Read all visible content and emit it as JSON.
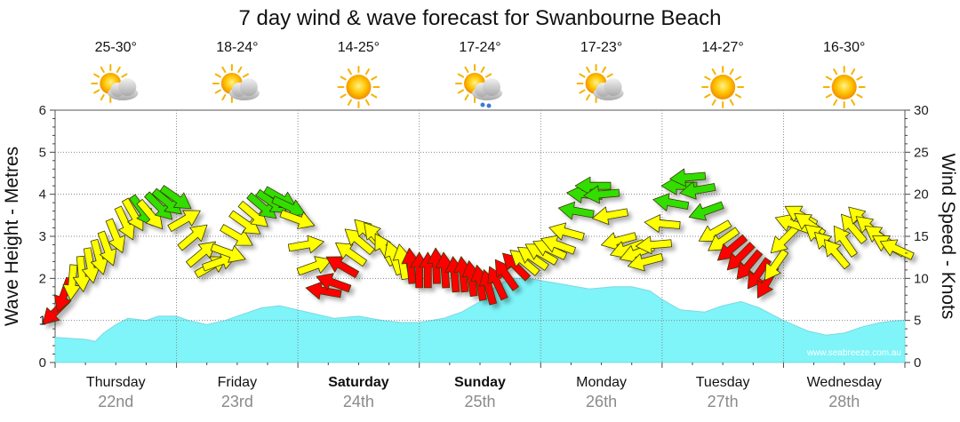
{
  "chart_data": {
    "type": "area",
    "title": "7 day wind & wave forecast for Swanbourne Beach",
    "y_left_label": "Wave Height - Metres",
    "y_right_label": "Wind Speed - Knots",
    "y_left_range": [
      0,
      6
    ],
    "y_right_range": [
      0,
      30
    ],
    "y_left_ticks": [
      "0",
      "1",
      "2",
      "3",
      "4",
      "5",
      "6"
    ],
    "y_right_ticks": [
      "0",
      "5",
      "10",
      "15",
      "20",
      "25",
      "30"
    ],
    "days": [
      {
        "name": "Thursday",
        "date": "22nd",
        "temp": "25-30°",
        "icon": "partly-cloudy-icon",
        "weekend": false
      },
      {
        "name": "Friday",
        "date": "23rd",
        "temp": "18-24°",
        "icon": "partly-cloudy-icon",
        "weekend": false
      },
      {
        "name": "Saturday",
        "date": "24th",
        "temp": "14-25°",
        "icon": "sunny-icon",
        "weekend": true
      },
      {
        "name": "Sunday",
        "date": "25th",
        "temp": "17-24°",
        "icon": "showers-icon",
        "weekend": true
      },
      {
        "name": "Monday",
        "date": "26th",
        "temp": "17-23°",
        "icon": "partly-cloudy-icon",
        "weekend": false
      },
      {
        "name": "Tuesday",
        "date": "27th",
        "temp": "14-27°",
        "icon": "sunny-icon",
        "weekend": false
      },
      {
        "name": "Wednesday",
        "date": "28th",
        "temp": "16-30°",
        "icon": "sunny-icon",
        "weekend": false
      }
    ],
    "wave_series": {
      "name": "Wave height",
      "color": "#7ff4f9",
      "t": [
        0,
        0.25,
        0.33,
        0.4,
        0.5,
        0.6,
        0.75,
        0.85,
        1.0,
        1.1,
        1.25,
        1.4,
        1.55,
        1.7,
        1.85,
        2.0,
        2.15,
        2.3,
        2.5,
        2.7,
        2.85,
        3.0,
        3.2,
        3.35,
        3.5,
        3.6,
        3.75,
        3.9,
        4.0,
        4.2,
        4.4,
        4.6,
        4.75,
        4.9,
        5.0,
        5.15,
        5.35,
        5.5,
        5.65,
        5.8,
        6.0,
        6.2,
        6.35,
        6.5,
        6.65,
        6.8,
        6.95,
        7.0
      ],
      "values": [
        0.6,
        0.55,
        0.5,
        0.7,
        0.9,
        1.05,
        1.0,
        1.1,
        1.1,
        1.0,
        0.9,
        1.0,
        1.15,
        1.3,
        1.35,
        1.25,
        1.15,
        1.05,
        1.1,
        1.0,
        0.95,
        0.95,
        1.05,
        1.2,
        1.45,
        1.75,
        2.0,
        2.0,
        1.95,
        1.85,
        1.75,
        1.8,
        1.8,
        1.7,
        1.5,
        1.25,
        1.2,
        1.35,
        1.45,
        1.3,
        1.0,
        0.75,
        0.65,
        0.7,
        0.85,
        0.95,
        1.0,
        1.0
      ]
    },
    "wind_series": {
      "name": "Wind speed",
      "t": [
        0.0,
        0.07,
        0.14,
        0.22,
        0.29,
        0.36,
        0.43,
        0.5,
        0.58,
        0.65,
        0.72,
        0.79,
        0.86,
        0.93,
        1.0,
        1.07,
        1.14,
        1.21,
        1.29,
        1.36,
        1.43,
        1.5,
        1.57,
        1.64,
        1.71,
        1.79,
        1.86,
        1.93,
        2.0,
        2.07,
        2.14,
        2.21,
        2.29,
        2.36,
        2.43,
        2.5,
        2.57,
        2.64,
        2.71,
        2.79,
        2.86,
        2.93,
        3.0,
        3.07,
        3.14,
        3.21,
        3.29,
        3.36,
        3.43,
        3.5,
        3.57,
        3.64,
        3.71,
        3.79,
        3.86,
        3.93,
        4.0,
        4.07,
        4.14,
        4.21,
        4.29,
        4.36,
        4.43,
        4.5,
        4.57,
        4.64,
        4.71,
        4.79,
        4.86,
        4.93,
        5.0,
        5.07,
        5.14,
        5.21,
        5.29,
        5.36,
        5.43,
        5.5,
        5.57,
        5.64,
        5.71,
        5.79,
        5.86,
        5.93,
        6.0,
        6.07,
        6.14,
        6.21,
        6.29,
        6.36,
        6.43,
        6.5,
        6.57,
        6.64,
        6.71,
        6.79,
        6.86,
        6.93
      ],
      "values": [
        6.0,
        8.0,
        9.5,
        10.5,
        11.5,
        12.5,
        13.5,
        15.0,
        16.5,
        17.5,
        18.0,
        17.5,
        18.5,
        19.0,
        19.5,
        17.0,
        15.0,
        13.0,
        11.5,
        12.0,
        13.0,
        15.0,
        16.5,
        17.5,
        18.5,
        19.0,
        19.5,
        18.5,
        17.0,
        14.0,
        11.5,
        8.5,
        9.5,
        11.5,
        13.0,
        14.5,
        15.5,
        15.0,
        13.5,
        12.5,
        12.0,
        11.5,
        11.0,
        11.0,
        11.5,
        11.0,
        10.5,
        10.5,
        10.0,
        9.5,
        9.0,
        9.5,
        10.5,
        11.5,
        12.0,
        12.5,
        13.0,
        13.5,
        14.0,
        15.5,
        18.0,
        20.0,
        21.0,
        20.0,
        17.5,
        14.5,
        13.5,
        13.0,
        12.0,
        14.0,
        16.5,
        19.0,
        21.0,
        22.0,
        20.5,
        18.0,
        15.5,
        14.5,
        13.5,
        12.5,
        11.5,
        10.5,
        9.5,
        11.5,
        14.5,
        16.5,
        17.5,
        16.5,
        15.0,
        14.0,
        13.0,
        14.5,
        16.0,
        17.0,
        16.0,
        15.0,
        14.0,
        13.5
      ],
      "directions_deg": [
        135,
        110,
        95,
        85,
        80,
        75,
        70,
        68,
        65,
        60,
        55,
        50,
        45,
        40,
        35,
        330,
        320,
        320,
        330,
        340,
        20,
        30,
        35,
        40,
        40,
        35,
        30,
        25,
        20,
        350,
        340,
        190,
        200,
        210,
        215,
        220,
        225,
        230,
        240,
        250,
        260,
        265,
        270,
        270,
        268,
        266,
        265,
        264,
        262,
        260,
        255,
        245,
        235,
        225,
        220,
        215,
        210,
        205,
        200,
        195,
        190,
        185,
        180,
        175,
        170,
        165,
        160,
        160,
        165,
        175,
        185,
        190,
        180,
        175,
        170,
        160,
        150,
        145,
        140,
        135,
        130,
        125,
        120,
        125,
        135,
        200,
        210,
        215,
        220,
        225,
        230,
        235,
        230,
        225,
        220,
        215,
        210,
        205
      ],
      "color_scale": {
        "light": "#ffff00",
        "moderate": "#33dd00",
        "strong": "#ff0000"
      }
    },
    "watermark": "www.seabreeze.com.au",
    "grid": true
  }
}
